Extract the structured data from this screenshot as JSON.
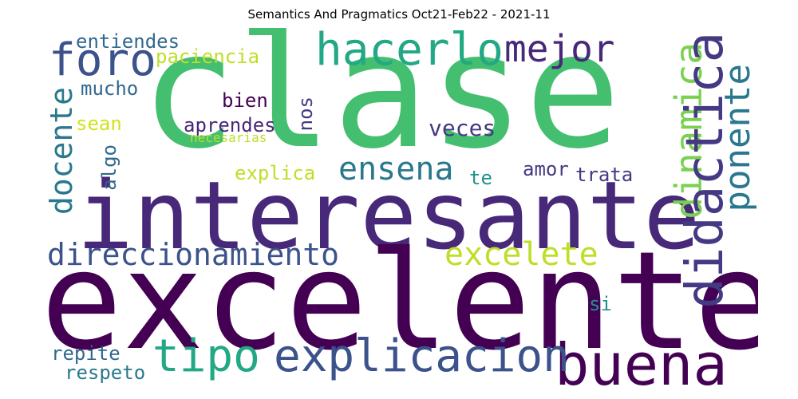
{
  "title": "Semantics And Pragmatics Oct21-Feb22 - 2021-11",
  "colors": {
    "dark_purple": "#440154",
    "indigo": "#482878",
    "purple_blue": "#443983",
    "slate_blue": "#3b528b",
    "steel_blue": "#31688e",
    "teal_blue": "#2a788e",
    "teal": "#21918c",
    "sea_green": "#22a884",
    "green": "#35b779",
    "medium_green": "#44bf70",
    "leaf_green": "#7ad151",
    "lime": "#a5db36",
    "yellow_green": "#bddf26",
    "yellow": "#d2e21b"
  },
  "words": [
    {
      "text": "clase",
      "color": "medium_green"
    },
    {
      "text": "interesante",
      "color": "indigo"
    },
    {
      "text": "excelente",
      "color": "dark_purple"
    },
    {
      "text": "buena",
      "color": "dark_purple"
    },
    {
      "text": "explicacion",
      "color": "slate_blue"
    },
    {
      "text": "tipo",
      "color": "sea_green"
    },
    {
      "text": "direccionamiento",
      "color": "slate_blue"
    },
    {
      "text": "foro",
      "color": "slate_blue"
    },
    {
      "text": "hacerlo",
      "color": "sea_green"
    },
    {
      "text": "mejor",
      "color": "indigo"
    },
    {
      "text": "dinamica",
      "color": "leaf_green"
    },
    {
      "text": "didactica",
      "color": "purple_blue"
    },
    {
      "text": "ponente",
      "color": "teal_blue"
    },
    {
      "text": "docente",
      "color": "teal_blue"
    },
    {
      "text": "ensena",
      "color": "teal_blue"
    },
    {
      "text": "excelete",
      "color": "yellow_green"
    },
    {
      "text": "entiendes",
      "color": "steel_blue"
    },
    {
      "text": "paciencia",
      "color": "yellow_green"
    },
    {
      "text": "mucho",
      "color": "steel_blue"
    },
    {
      "text": "bien",
      "color": "dark_purple"
    },
    {
      "text": "nos",
      "color": "purple_blue"
    },
    {
      "text": "aprendes",
      "color": "indigo"
    },
    {
      "text": "veces",
      "color": "purple_blue"
    },
    {
      "text": "sean",
      "color": "yellow"
    },
    {
      "text": "necesarias",
      "color": "yellow_green"
    },
    {
      "text": "algo",
      "color": "steel_blue"
    },
    {
      "text": "explica",
      "color": "yellow_green"
    },
    {
      "text": "te",
      "color": "teal"
    },
    {
      "text": "amor",
      "color": "purple_blue"
    },
    {
      "text": "trata",
      "color": "purple_blue"
    },
    {
      "text": "si",
      "color": "teal"
    },
    {
      "text": "repite",
      "color": "steel_blue"
    },
    {
      "text": "respeto",
      "color": "teal_blue"
    }
  ]
}
